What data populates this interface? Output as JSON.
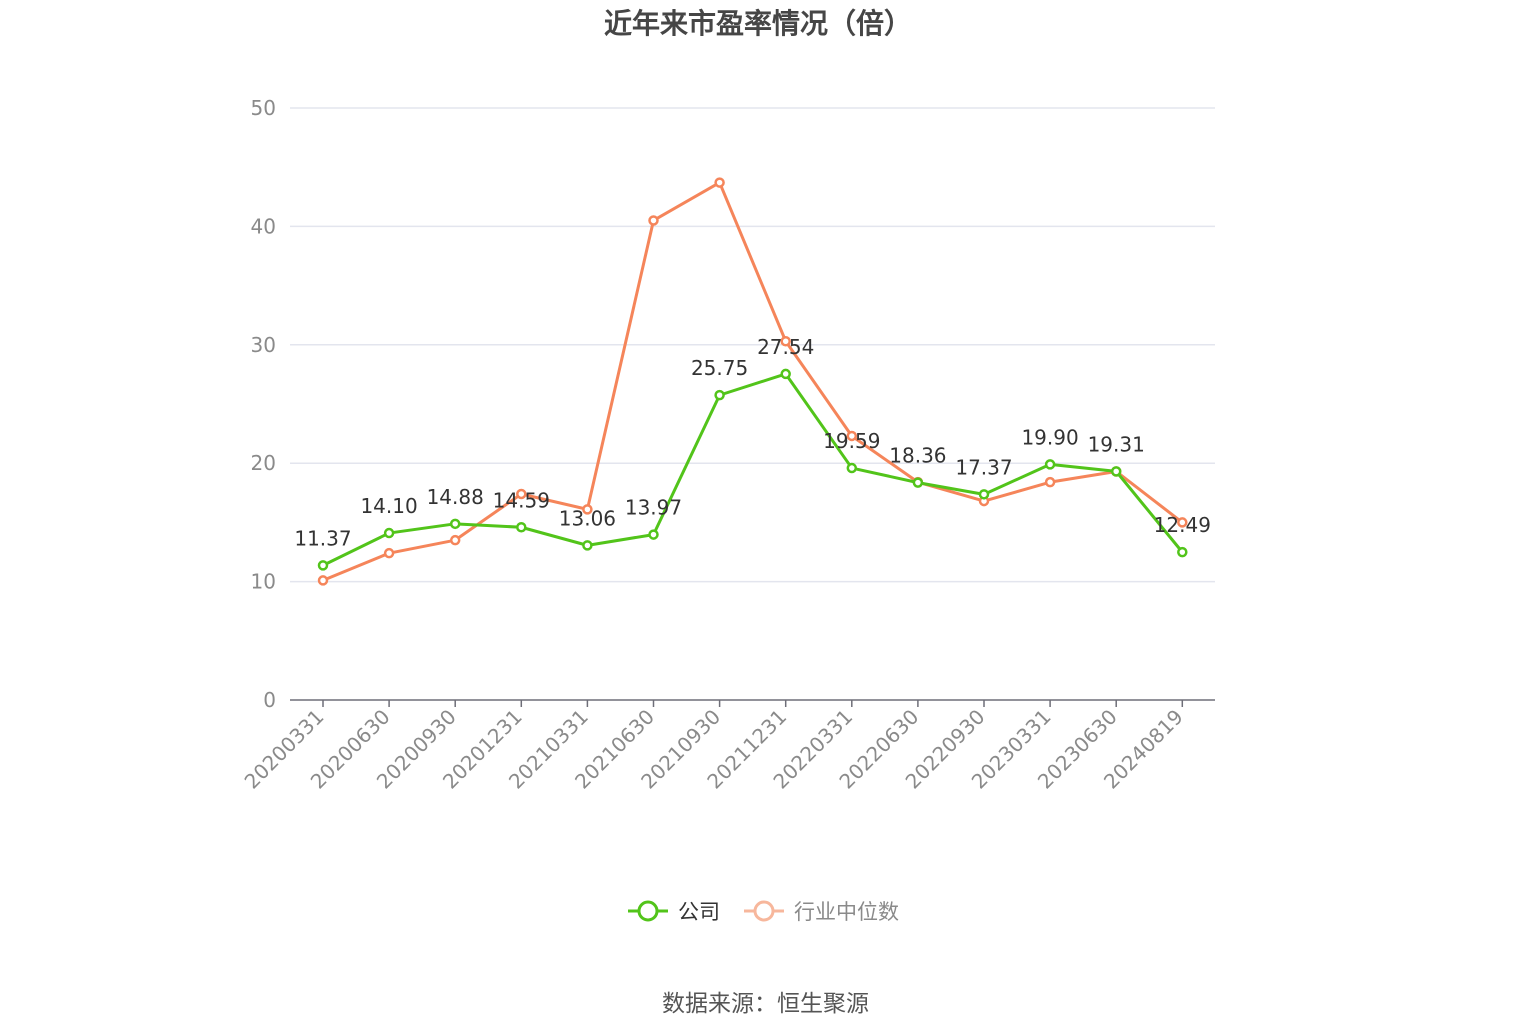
{
  "title": "近年来市盈率情况（倍）",
  "source": "数据来源：恒生聚源",
  "legend": {
    "company": "公司",
    "industry": "行业中位数"
  },
  "colors": {
    "company": "#52c41a",
    "industry": "#f5855a",
    "industry_legend": "#f7b79c",
    "grid": "#e3e5ee",
    "axis": "#6e6e78"
  },
  "chart_data": {
    "type": "line",
    "categories": [
      "20200331",
      "20200630",
      "20200930",
      "20201231",
      "20210331",
      "20210630",
      "20210930",
      "20211231",
      "20220331",
      "20220630",
      "20220930",
      "20230331",
      "20230630",
      "20240819"
    ],
    "ylim": [
      0,
      50
    ],
    "yticks": [
      0,
      10,
      20,
      30,
      40,
      50
    ],
    "grid": true,
    "legend_position": "bottom",
    "series": [
      {
        "name": "公司",
        "values": [
          11.37,
          14.1,
          14.88,
          14.59,
          13.06,
          13.97,
          25.75,
          27.54,
          19.59,
          18.36,
          17.37,
          19.9,
          19.31,
          12.49
        ],
        "labels": [
          "11.37",
          "14.10",
          "14.88",
          "14.59",
          "13.06",
          "13.97",
          "25.75",
          "27.54",
          "19.59",
          "18.36",
          "17.37",
          "19.90",
          "19.31",
          "12.49"
        ]
      },
      {
        "name": "行业中位数",
        "values": [
          10.1,
          12.4,
          13.5,
          17.4,
          16.1,
          40.5,
          43.7,
          30.3,
          22.3,
          18.4,
          16.8,
          18.4,
          19.3,
          15.0
        ]
      }
    ]
  }
}
